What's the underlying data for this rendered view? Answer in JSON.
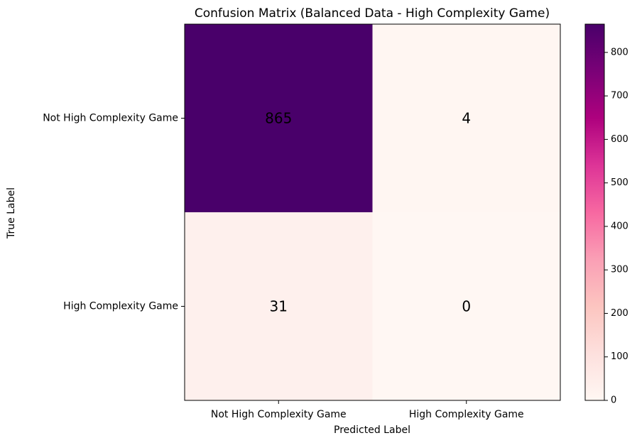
{
  "chart_data": {
    "type": "heatmap",
    "title": "Confusion Matrix (Balanced Data - High Complexity Game)",
    "xlabel": "Predicted Label",
    "ylabel": "True Label",
    "x_categories": [
      "Not High Complexity Game",
      "High Complexity Game"
    ],
    "y_categories": [
      "Not High Complexity Game",
      "High Complexity Game"
    ],
    "values": [
      [
        865,
        4
      ],
      [
        31,
        0
      ]
    ],
    "cell_labels": [
      [
        "865",
        "4"
      ],
      [
        "31",
        "0"
      ]
    ],
    "colorbar": {
      "range": [
        0,
        865
      ],
      "ticks": [
        0,
        100,
        200,
        300,
        400,
        500,
        600,
        700,
        800
      ],
      "tick_labels": [
        "0",
        "100",
        "200",
        "300",
        "400",
        "500",
        "600",
        "700",
        "800"
      ],
      "colormap": "RdPu",
      "colors": [
        "#fff7f3",
        "#fde0dd",
        "#fcc5c0",
        "#fa9fb5",
        "#f768a1",
        "#dd3497",
        "#ae017e",
        "#7a0177",
        "#49006a"
      ]
    }
  }
}
